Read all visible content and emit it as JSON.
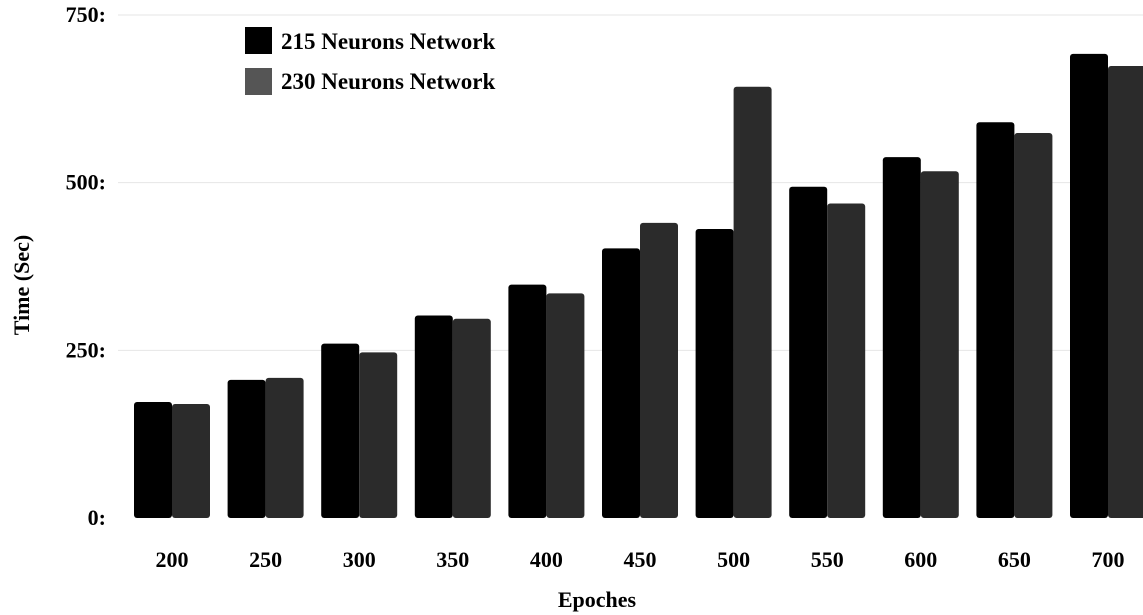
{
  "chart_data": {
    "type": "bar",
    "title": "",
    "xlabel": "Epoches",
    "ylabel": "Time (Sec)",
    "ylim": [
      0,
      750
    ],
    "y_ticks": [
      0,
      250,
      500,
      750
    ],
    "y_tick_labels": [
      "0:",
      "250:",
      "500:",
      "750:"
    ],
    "grid": "horizontal",
    "legend_position": "top-left",
    "categories": [
      "200",
      "250",
      "300",
      "350",
      "400",
      "450",
      "500",
      "550",
      "600",
      "650",
      "700"
    ],
    "series": [
      {
        "name": "215 Neurons Network",
        "color": "#000000",
        "values": [
          173,
          206,
          260,
          302,
          348,
          402,
          431,
          494,
          538,
          590,
          692
        ]
      },
      {
        "name": "230 Neurons Network",
        "color": "#2b2b2b",
        "legend_color": "#555555",
        "values": [
          170,
          209,
          247,
          297,
          335,
          440,
          643,
          469,
          517,
          574,
          674
        ]
      }
    ]
  }
}
